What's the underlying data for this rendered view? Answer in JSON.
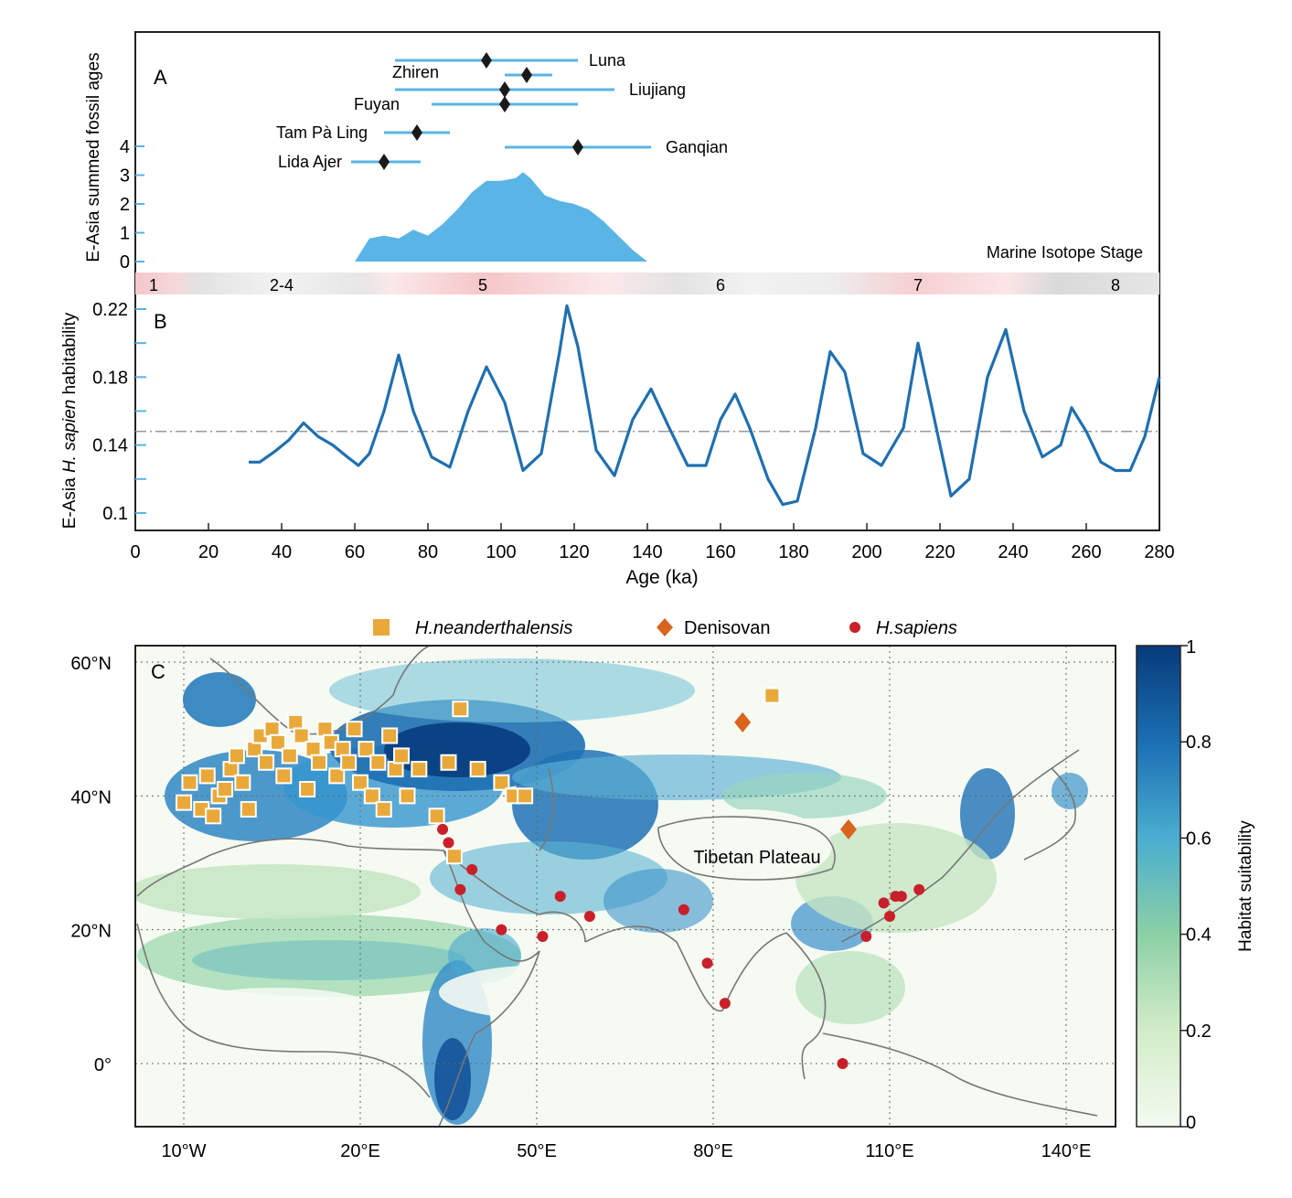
{
  "panel_a": {
    "label": "A",
    "ylabel": "E-Asia summed fossil ages",
    "yticks": [
      "0",
      "1",
      "2",
      "3",
      "4"
    ],
    "fossils": [
      {
        "name": "Luna",
        "age": 96,
        "min": 71,
        "max": 121
      },
      {
        "name": "Zhiren",
        "age": 107,
        "min": 101,
        "max": 114
      },
      {
        "name": "Liujiang",
        "age": 101,
        "min": 71,
        "max": 131
      },
      {
        "name": "Fuyan",
        "age": 101,
        "min": 81,
        "max": 121
      },
      {
        "name": "Tam Pà Ling",
        "age": 77,
        "min": 68,
        "max": 86
      },
      {
        "name": "Ganqian",
        "age": 121,
        "min": 101,
        "max": 141
      },
      {
        "name": "Lida Ajer",
        "age": 68,
        "min": 59,
        "max": 78
      }
    ],
    "stage_label": "Marine Isotope Stage",
    "stages": [
      {
        "label": "1",
        "age": 5
      },
      {
        "label": "2-4",
        "age": 40
      },
      {
        "label": "5",
        "age": 95
      },
      {
        "label": "6",
        "age": 160
      },
      {
        "label": "7",
        "age": 214
      },
      {
        "label": "8",
        "age": 268
      }
    ]
  },
  "panel_b": {
    "label": "B",
    "ylabel_pre": "E-Asia ",
    "ylabel_italic": "H. sapien",
    "ylabel_post": " habitability",
    "yticks": [
      "0.1",
      "0.14",
      "0.18",
      "0.22"
    ],
    "xticks": [
      "0",
      "20",
      "40",
      "60",
      "80",
      "100",
      "120",
      "140",
      "160",
      "180",
      "200",
      "220",
      "240",
      "260",
      "280"
    ],
    "xlabel": "Age (ka)"
  },
  "panel_c": {
    "label": "C",
    "legend": [
      {
        "label": "H.neanderthalensis",
        "color": "#e8a93a",
        "marker": "square"
      },
      {
        "label": "Denisovan",
        "color": "#d9641e",
        "marker": "diamond"
      },
      {
        "label": "H.sapiens",
        "color": "#c8202a",
        "marker": "circle"
      }
    ],
    "lat_ticks": [
      "60°N",
      "40°N",
      "20°N",
      "0°"
    ],
    "lon_ticks": [
      "10°W",
      "20°E",
      "50°E",
      "80°E",
      "110°E",
      "140°E"
    ],
    "annotation": "Tibetan Plateau",
    "colorbar_label": "Habitat suitability",
    "colorbar_ticks": [
      "0",
      "0.2",
      "0.4",
      "0.6",
      "0.8",
      "1"
    ]
  },
  "chart_data": [
    {
      "type": "area",
      "title": "A",
      "ylabel": "E-Asia summed fossil ages",
      "xlim": [
        0,
        280
      ],
      "ylim": [
        0,
        4
      ],
      "x": [
        60,
        64,
        68,
        72,
        76,
        80,
        84,
        88,
        92,
        96,
        100,
        104,
        106,
        108,
        112,
        116,
        120,
        124,
        128,
        132,
        136,
        140
      ],
      "y": [
        0,
        0.8,
        0.9,
        0.8,
        1.1,
        0.9,
        1.3,
        1.8,
        2.4,
        2.8,
        2.8,
        2.9,
        3.1,
        2.9,
        2.3,
        2.1,
        2.0,
        1.8,
        1.4,
        0.9,
        0.4,
        0
      ]
    },
    {
      "type": "line",
      "title": "B",
      "xlabel": "Age (ka)",
      "ylabel": "E-Asia H. sapien habitability",
      "xlim": [
        0,
        280
      ],
      "ylim": [
        0.09,
        0.23
      ],
      "reference_line": 0.148,
      "x": [
        31,
        34,
        38,
        42,
        46,
        50,
        54,
        58,
        61,
        64,
        68,
        72,
        76,
        81,
        86,
        91,
        96,
        101,
        106,
        111,
        116,
        118,
        121,
        126,
        131,
        136,
        141,
        146,
        151,
        156,
        160,
        164,
        168,
        173,
        177,
        181,
        186,
        190,
        194,
        199,
        204,
        210,
        214,
        219,
        223,
        228,
        233,
        238,
        243,
        248,
        253,
        256,
        260,
        264,
        268,
        272,
        276,
        280
      ],
      "y": [
        0.13,
        0.13,
        0.136,
        0.143,
        0.153,
        0.145,
        0.14,
        0.133,
        0.128,
        0.135,
        0.16,
        0.193,
        0.16,
        0.133,
        0.127,
        0.16,
        0.186,
        0.165,
        0.125,
        0.135,
        0.195,
        0.222,
        0.198,
        0.137,
        0.122,
        0.155,
        0.173,
        0.15,
        0.128,
        0.128,
        0.155,
        0.17,
        0.15,
        0.12,
        0.105,
        0.107,
        0.15,
        0.195,
        0.183,
        0.135,
        0.128,
        0.15,
        0.2,
        0.15,
        0.11,
        0.12,
        0.18,
        0.208,
        0.16,
        0.133,
        0.14,
        0.162,
        0.148,
        0.13,
        0.125,
        0.125,
        0.145,
        0.18
      ]
    },
    {
      "type": "scatter",
      "title": "C",
      "colorbar": {
        "label": "Habitat suitability",
        "range": [
          0,
          1
        ]
      },
      "series": [
        {
          "name": "H.neanderthalensis",
          "points": [
            [
              -10,
              39
            ],
            [
              -9,
              42
            ],
            [
              -7,
              38
            ],
            [
              -6,
              43
            ],
            [
              -5,
              37
            ],
            [
              -4,
              40
            ],
            [
              -3,
              41
            ],
            [
              -2,
              44
            ],
            [
              -1,
              46
            ],
            [
              0,
              42
            ],
            [
              1,
              38
            ],
            [
              2,
              47
            ],
            [
              3,
              49
            ],
            [
              4,
              45
            ],
            [
              5,
              50
            ],
            [
              6,
              48
            ],
            [
              7,
              43
            ],
            [
              8,
              46
            ],
            [
              9,
              51
            ],
            [
              10,
              49
            ],
            [
              11,
              41
            ],
            [
              12,
              47
            ],
            [
              13,
              45
            ],
            [
              14,
              50
            ],
            [
              15,
              48
            ],
            [
              16,
              43
            ],
            [
              17,
              47
            ],
            [
              18,
              45
            ],
            [
              19,
              50
            ],
            [
              20,
              42
            ],
            [
              21,
              47
            ],
            [
              22,
              40
            ],
            [
              23,
              45
            ],
            [
              24,
              38
            ],
            [
              25,
              49
            ],
            [
              26,
              44
            ],
            [
              27,
              46
            ],
            [
              28,
              40
            ],
            [
              30,
              44
            ],
            [
              33,
              37
            ],
            [
              35,
              45
            ],
            [
              36,
              31
            ],
            [
              37,
              53
            ],
            [
              40,
              44
            ],
            [
              44,
              42
            ],
            [
              46,
              40
            ],
            [
              48,
              40
            ],
            [
              90,
              55
            ]
          ]
        },
        {
          "name": "Denisovan",
          "points": [
            [
              85,
              51
            ],
            [
              103,
              35
            ]
          ]
        },
        {
          "name": "H.sapiens",
          "points": [
            [
              34,
              35
            ],
            [
              35,
              33
            ],
            [
              37,
              26
            ],
            [
              39,
              29
            ],
            [
              44,
              20
            ],
            [
              51,
              19
            ],
            [
              54,
              25
            ],
            [
              59,
              22
            ],
            [
              75,
              23
            ],
            [
              79,
              15
            ],
            [
              82,
              9
            ],
            [
              102,
              0
            ],
            [
              106,
              19
            ],
            [
              109,
              24
            ],
            [
              110,
              22
            ],
            [
              111,
              25
            ],
            [
              112,
              25
            ],
            [
              115,
              26
            ]
          ]
        }
      ]
    }
  ]
}
